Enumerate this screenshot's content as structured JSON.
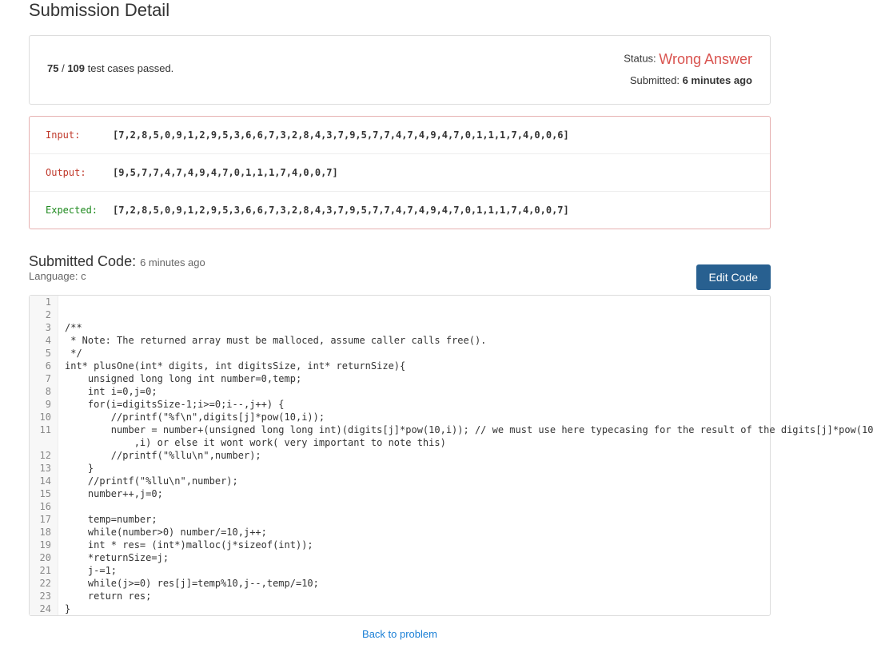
{
  "page": {
    "title": "Submission Detail"
  },
  "summary": {
    "passed_count": "75",
    "sep": " / ",
    "total_count": "109",
    "suffix": " test cases passed.",
    "status_label": "Status: ",
    "status_value": "Wrong Answer",
    "submitted_label": "Submitted: ",
    "submitted_value": "6 minutes ago"
  },
  "details": {
    "input_label": "Input:",
    "input_value": "[7,2,8,5,0,9,1,2,9,5,3,6,6,7,3,2,8,4,3,7,9,5,7,7,4,7,4,9,4,7,0,1,1,1,7,4,0,0,6]",
    "output_label": "Output:",
    "output_value": "[9,5,7,7,4,7,4,9,4,7,0,1,1,1,7,4,0,0,7]",
    "expected_label": "Expected:",
    "expected_value": "[7,2,8,5,0,9,1,2,9,5,3,6,6,7,3,2,8,4,3,7,9,5,7,7,4,7,4,9,4,7,0,1,1,1,7,4,0,0,7]"
  },
  "code_section": {
    "title": "Submitted Code: ",
    "time": "6 minutes ago",
    "language_label": "Language: ",
    "language_value": "c",
    "edit_button": "Edit Code"
  },
  "code_lines": [
    "",
    "",
    "/**",
    " * Note: The returned array must be malloced, assume caller calls free().",
    " */",
    "int* plusOne(int* digits, int digitsSize, int* returnSize){",
    "    unsigned long long int number=0,temp;",
    "    int i=0,j=0;",
    "    for(i=digitsSize-1;i>=0;i--,j++) {",
    "        //printf(\"%f\\n\",digits[j]*pow(10,i));",
    "        number = number+(unsigned long long int)(digits[j]*pow(10,i)); // we must use here typecasing for the result of the digits[j]*pow(10\n            ,i) or else it wont work( very important to note this)",
    "        //printf(\"%llu\\n\",number);",
    "    }",
    "    //printf(\"%llu\\n\",number);",
    "    number++,j=0;",
    "    ",
    "    temp=number;",
    "    while(number>0) number/=10,j++;",
    "    int * res= (int*)malloc(j*sizeof(int));",
    "    *returnSize=j;",
    "    j-=1;",
    "    while(j>=0) res[j]=temp%10,j--,temp/=10;",
    "    return res;",
    "}"
  ],
  "back_link": "Back to problem",
  "colors": {
    "error": "#d9534f",
    "expected": "#1f8a1f",
    "link": "#1a7fd6",
    "button_bg": "#286090",
    "border": "#dddddd",
    "error_border": "#e6b1b1"
  }
}
